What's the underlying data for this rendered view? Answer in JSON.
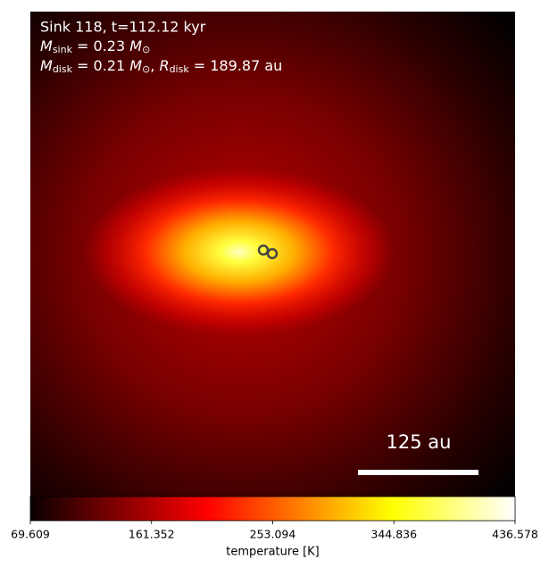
{
  "chart_data": {
    "type": "heatmap",
    "colormap": "hot",
    "annotations": [
      {
        "text": "Sink 118, t=112.12 kyr"
      },
      {
        "symbol": "M",
        "sub": "sink",
        "rest": " = 0.23 ",
        "unit": "M",
        "unit_sub": "⊙"
      },
      {
        "symbol": "M",
        "sub": "disk",
        "rest": " = 0.21 ",
        "unit": "M",
        "unit_sub": "⊙",
        "sep": ", ",
        "symbol2": "R",
        "sub2": "disk",
        "rest2": " = 189.87 au"
      }
    ],
    "scale_bar": "125 au",
    "colorbar": {
      "label": "temperature [K]",
      "clim": [
        69.609,
        436.578
      ],
      "ticks": [
        69.609,
        161.352,
        253.094,
        344.836,
        436.578
      ]
    }
  }
}
